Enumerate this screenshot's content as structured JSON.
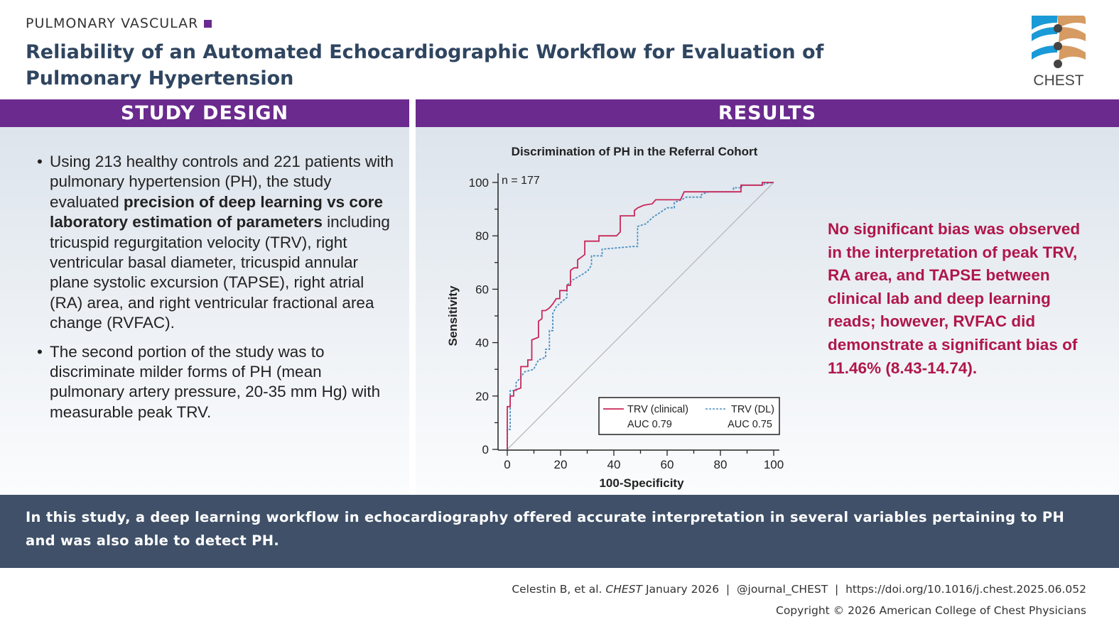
{
  "header": {
    "kicker": "PULMONARY VASCULAR",
    "title": "Reliability of an Automated Echocardiographic Workflow for Evaluation of Pulmonary Hypertension",
    "logo_text": "CHEST"
  },
  "colors": {
    "purple": "#6a2a8e",
    "title": "#2f4560",
    "finding": "#b0164a",
    "band": "#3f5068",
    "clinical": "#c8285a",
    "dl": "#4a90c0"
  },
  "study_design": {
    "heading": "STUDY DESIGN",
    "bullet1": {
      "a": "Using 213 healthy controls and 221 patients with pulmonary hypertension (PH), the study evaluated ",
      "b": "precision of deep learning vs core laboratory estimation of parameters",
      "c": " including tricuspid regurgitation velocity (TRV), right ventricular basal diameter, tricuspid annular plane systolic excursion (TAPSE), right atrial (RA) area, and right ventricular fractional area change (RVFAC)."
    },
    "bullet2": "The second portion of the study was to discriminate milder forms of PH (mean pulmonary artery pressure, 20-35 mm Hg) with measurable peak TRV."
  },
  "results": {
    "heading": "RESULTS",
    "finding": "No significant bias was observed in the interpretation of peak TRV, RA area, and TAPSE between clinical lab and deep learning reads; however, RVFAC did demonstrate a significant bias of 11.46% (8.43-14.74)."
  },
  "conclusion": "In this study, a deep learning workflow in echocardiography offered accurate interpretation in several variables pertaining to PH and was also able to detect PH.",
  "footer": {
    "citation_pre": "Celestin B, et al. ",
    "citation_journal": "CHEST",
    "citation_post": " January 2026  |  @journal_CHEST  |  https://doi.org/10.1016/j.chest.2025.06.052",
    "copyright": "Copyright © 2026 American College of Chest Physicians"
  },
  "chart_data": {
    "type": "line",
    "title": "Discrimination of PH in the Referral Cohort",
    "xlabel": "100-Specificity",
    "ylabel": "Sensitivity",
    "xlim": [
      0,
      100
    ],
    "ylim": [
      0,
      100
    ],
    "xticks": [
      "0",
      "20",
      "40",
      "60",
      "80",
      "100"
    ],
    "yticks": [
      "0",
      "20",
      "40",
      "60",
      "80",
      "100"
    ],
    "annotation": "n = 177",
    "legend_position": "bottom-right",
    "grid": false,
    "reference_line": "diagonal",
    "series": [
      {
        "name": "TRV (clinical)",
        "auc_label": "AUC 0.79",
        "style": "solid",
        "color": "#c8285a",
        "points": [
          [
            0,
            0
          ],
          [
            0,
            16
          ],
          [
            1.1,
            16
          ],
          [
            1.1,
            20
          ],
          [
            2.4,
            20
          ],
          [
            2.4,
            22
          ],
          [
            5.1,
            23
          ],
          [
            5.1,
            31
          ],
          [
            7.7,
            31
          ],
          [
            7.7,
            33.5
          ],
          [
            9.2,
            33.5
          ],
          [
            9.2,
            41
          ],
          [
            11.7,
            42
          ],
          [
            11.7,
            48
          ],
          [
            13,
            49
          ],
          [
            13,
            52
          ],
          [
            14.4,
            52
          ],
          [
            15.8,
            53
          ],
          [
            17.1,
            54.5
          ],
          [
            18.4,
            56.5
          ],
          [
            19.7,
            56.5
          ],
          [
            19.7,
            59.5
          ],
          [
            22.4,
            59.5
          ],
          [
            22.4,
            61.5
          ],
          [
            23.7,
            61.5
          ],
          [
            23.7,
            67
          ],
          [
            25,
            68
          ],
          [
            26.4,
            68
          ],
          [
            26.4,
            71
          ],
          [
            27.8,
            72
          ],
          [
            29.1,
            73
          ],
          [
            29.1,
            78
          ],
          [
            34.4,
            78
          ],
          [
            34.4,
            80
          ],
          [
            41,
            80
          ],
          [
            42.4,
            81.5
          ],
          [
            42.4,
            87.5
          ],
          [
            47.7,
            87.5
          ],
          [
            47.7,
            89.5
          ],
          [
            49,
            90.5
          ],
          [
            51.3,
            91.5
          ],
          [
            54.4,
            92
          ],
          [
            55.7,
            93.5
          ],
          [
            65,
            93.5
          ],
          [
            66.4,
            96.5
          ],
          [
            87.7,
            96.5
          ],
          [
            87.7,
            99
          ],
          [
            95.7,
            99
          ],
          [
            95.7,
            100
          ],
          [
            100,
            100
          ]
        ]
      },
      {
        "name": "TRV (DL)",
        "auc_label": "AUC 0.75",
        "style": "dashed",
        "color": "#4a90c0",
        "points": [
          [
            0,
            0
          ],
          [
            0,
            7.5
          ],
          [
            1.1,
            7.5
          ],
          [
            1.1,
            22
          ],
          [
            3.3,
            22
          ],
          [
            3.3,
            25
          ],
          [
            5.1,
            27
          ],
          [
            6.4,
            29
          ],
          [
            9.9,
            30
          ],
          [
            11.7,
            33.5
          ],
          [
            14.4,
            34.5
          ],
          [
            14.4,
            37.5
          ],
          [
            15.8,
            37.5
          ],
          [
            15.8,
            44.5
          ],
          [
            17.1,
            44.5
          ],
          [
            17.1,
            51
          ],
          [
            18.4,
            53.5
          ],
          [
            22.4,
            57
          ],
          [
            22.4,
            61.5
          ],
          [
            24.6,
            63.5
          ],
          [
            28.1,
            65.5
          ],
          [
            30.3,
            67
          ],
          [
            31.6,
            69
          ],
          [
            31.6,
            72.5
          ],
          [
            35.6,
            72.5
          ],
          [
            35.6,
            75
          ],
          [
            47.1,
            76
          ],
          [
            48.9,
            76
          ],
          [
            48.9,
            83.5
          ],
          [
            52,
            84.5
          ],
          [
            54.7,
            87
          ],
          [
            60,
            90.5
          ],
          [
            62.7,
            90.5
          ],
          [
            62.7,
            92.5
          ],
          [
            65.4,
            93.5
          ],
          [
            67.1,
            94.5
          ],
          [
            72.9,
            94.5
          ],
          [
            72.9,
            95.5
          ],
          [
            75.6,
            96.5
          ],
          [
            84.9,
            96.5
          ],
          [
            84.9,
            98
          ],
          [
            88,
            98
          ],
          [
            88,
            99
          ],
          [
            96.4,
            99
          ],
          [
            96.4,
            99.5
          ],
          [
            100,
            100
          ]
        ]
      }
    ]
  }
}
